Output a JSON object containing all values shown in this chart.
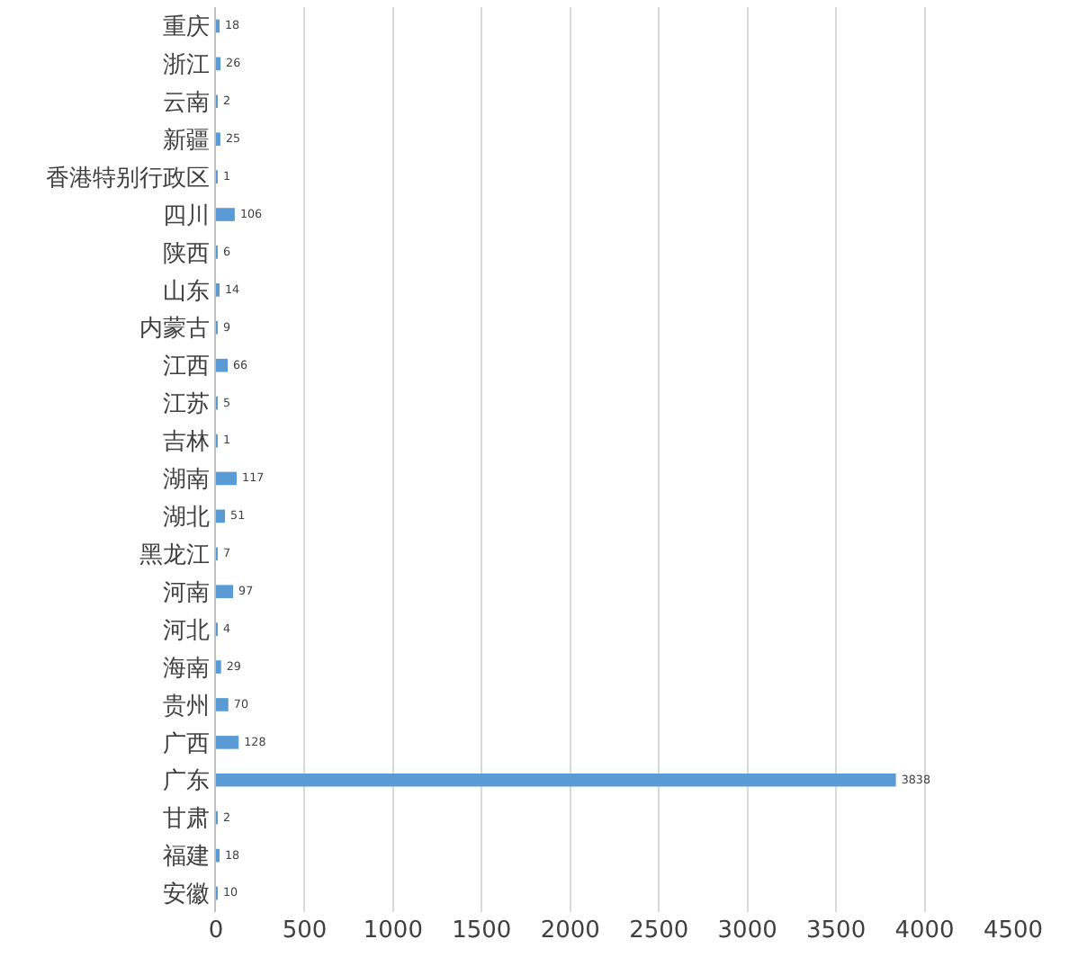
{
  "chart_data": {
    "type": "bar",
    "orientation": "horizontal",
    "categories": [
      "重庆",
      "浙江",
      "云南",
      "新疆",
      "香港特别行政区",
      "四川",
      "陕西",
      "山东",
      "内蒙古",
      "江西",
      "江苏",
      "吉林",
      "湖南",
      "湖北",
      "黑龙江",
      "河南",
      "河北",
      "海南",
      "贵州",
      "广西",
      "广东",
      "甘肃",
      "福建",
      "安徽"
    ],
    "values": [
      18,
      26,
      2,
      25,
      1,
      106,
      6,
      14,
      9,
      66,
      5,
      1,
      117,
      51,
      7,
      97,
      4,
      29,
      70,
      128,
      3838,
      2,
      18,
      10
    ],
    "color": "#5b9bd5",
    "xlim": [
      0,
      4500
    ],
    "xticks": [
      0,
      500,
      1000,
      1500,
      2000,
      2500,
      3000,
      3500,
      4000,
      4500
    ],
    "grid": "x",
    "data_labels": true
  }
}
